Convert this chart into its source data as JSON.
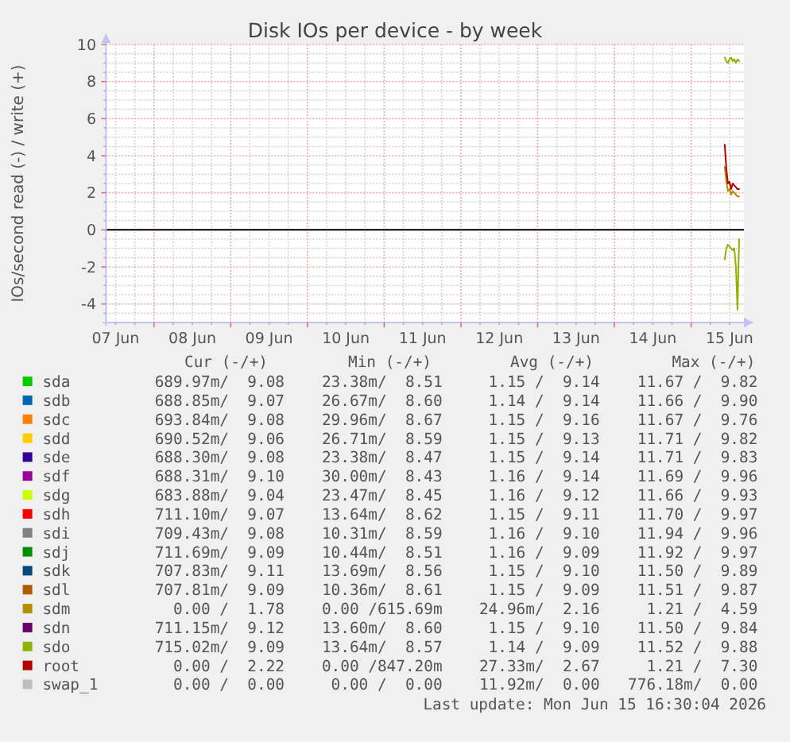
{
  "chart_data": {
    "type": "line",
    "title": "Disk IOs per device - by week",
    "ylabel": "IOs/second read (-) / write (+)",
    "xlim": [
      "2026-06-07T09:00",
      "2026-06-15T16:30"
    ],
    "xticks": [
      {
        "value": "2026-06-07T12:00",
        "label": "07 Jun"
      },
      {
        "value": "2026-06-07T18:00",
        "label": null
      },
      {
        "value": "2026-06-08T00:00",
        "label": null
      },
      {
        "value": "2026-06-08T06:00",
        "label": null
      },
      {
        "value": "2026-06-08T12:00",
        "label": "08 Jun"
      },
      {
        "value": "2026-06-08T18:00",
        "label": null
      },
      {
        "value": "2026-06-09T00:00",
        "label": null
      },
      {
        "value": "2026-06-09T06:00",
        "label": null
      },
      {
        "value": "2026-06-09T12:00",
        "label": "09 Jun"
      },
      {
        "value": "2026-06-09T18:00",
        "label": null
      },
      {
        "value": "2026-06-10T00:00",
        "label": null
      },
      {
        "value": "2026-06-10T06:00",
        "label": null
      },
      {
        "value": "2026-06-10T12:00",
        "label": "10 Jun"
      },
      {
        "value": "2026-06-10T18:00",
        "label": null
      },
      {
        "value": "2026-06-11T00:00",
        "label": null
      },
      {
        "value": "2026-06-11T06:00",
        "label": null
      },
      {
        "value": "2026-06-11T12:00",
        "label": "11 Jun"
      },
      {
        "value": "2026-06-11T18:00",
        "label": null
      },
      {
        "value": "2026-06-12T00:00",
        "label": null
      },
      {
        "value": "2026-06-12T06:00",
        "label": null
      },
      {
        "value": "2026-06-12T12:00",
        "label": "12 Jun"
      },
      {
        "value": "2026-06-12T18:00",
        "label": null
      },
      {
        "value": "2026-06-13T00:00",
        "label": null
      },
      {
        "value": "2026-06-13T06:00",
        "label": null
      },
      {
        "value": "2026-06-13T12:00",
        "label": "13 Jun"
      },
      {
        "value": "2026-06-13T18:00",
        "label": null
      },
      {
        "value": "2026-06-14T00:00",
        "label": null
      },
      {
        "value": "2026-06-14T06:00",
        "label": null
      },
      {
        "value": "2026-06-14T12:00",
        "label": "14 Jun"
      },
      {
        "value": "2026-06-14T18:00",
        "label": null
      },
      {
        "value": "2026-06-15T00:00",
        "label": null
      },
      {
        "value": "2026-06-15T06:00",
        "label": null
      },
      {
        "value": "2026-06-15T12:00",
        "label": "15 Jun"
      }
    ],
    "ylim": [
      -5,
      10
    ],
    "yticks": [
      -4,
      {
        "value": -4.5,
        "label": null
      },
      {
        "value": -3.5,
        "label": null
      },
      {
        "value": -3,
        "label": null
      },
      {
        "value": -2.5,
        "label": null
      },
      -2,
      {
        "value": -1.5,
        "label": null
      },
      {
        "value": -1,
        "label": null
      },
      {
        "value": -0.5,
        "label": null
      },
      0,
      {
        "value": 0.5,
        "label": null
      },
      {
        "value": 1,
        "label": null
      },
      {
        "value": 1.5,
        "label": null
      },
      2,
      {
        "value": 2.5,
        "label": null
      },
      {
        "value": 3,
        "label": null
      },
      {
        "value": 3.5,
        "label": null
      },
      4,
      {
        "value": 4.5,
        "label": null
      },
      {
        "value": 5,
        "label": null
      },
      {
        "value": 5.5,
        "label": null
      },
      6,
      {
        "value": 6.5,
        "label": null
      },
      {
        "value": 7,
        "label": null
      },
      {
        "value": 7.5,
        "label": null
      },
      8,
      {
        "value": 8.5,
        "label": null
      },
      {
        "value": 9,
        "label": null
      },
      {
        "value": 9.5,
        "label": null
      },
      10
    ],
    "grid": true,
    "legend": "bottom",
    "x": [
      "2026-06-15T10:30",
      "2026-06-15T11:00",
      "2026-06-15T11:30",
      "2026-06-15T12:00",
      "2026-06-15T12:30",
      "2026-06-15T13:00",
      "2026-06-15T13:30",
      "2026-06-15T14:00",
      "2026-06-15T14:30",
      "2026-06-15T15:00"
    ],
    "series": [
      {
        "name": "sda",
        "color": "#00cc00",
        "values": [
          null,
          null,
          null,
          null,
          null,
          null,
          null,
          null,
          null,
          null
        ]
      },
      {
        "name": "sdb",
        "color": "#0066b3",
        "values": [
          null,
          null,
          null,
          null,
          null,
          null,
          null,
          null,
          null,
          null
        ]
      },
      {
        "name": "sdc",
        "color": "#ff8000",
        "values": [
          null,
          null,
          null,
          null,
          null,
          null,
          null,
          null,
          null,
          null
        ]
      },
      {
        "name": "sdd",
        "color": "#ffcc00",
        "values": [
          null,
          null,
          null,
          null,
          null,
          null,
          null,
          null,
          null,
          null
        ]
      },
      {
        "name": "sde",
        "color": "#330099",
        "values": [
          null,
          null,
          null,
          null,
          null,
          null,
          null,
          null,
          null,
          null
        ]
      },
      {
        "name": "sdf",
        "color": "#990099",
        "values": [
          null,
          null,
          null,
          null,
          null,
          null,
          null,
          null,
          null,
          null
        ]
      },
      {
        "name": "sdg",
        "color": "#ccff00",
        "values": [
          null,
          null,
          null,
          null,
          null,
          null,
          null,
          null,
          null,
          null
        ]
      },
      {
        "name": "sdh",
        "color": "#ff0000",
        "values": [
          null,
          null,
          null,
          null,
          null,
          null,
          null,
          null,
          null,
          null
        ]
      },
      {
        "name": "sdi",
        "color": "#808080",
        "values": [
          null,
          null,
          null,
          null,
          null,
          null,
          null,
          null,
          null,
          null
        ]
      },
      {
        "name": "sdj",
        "color": "#008f00",
        "values": [
          null,
          null,
          null,
          null,
          null,
          null,
          null,
          null,
          null,
          null
        ]
      },
      {
        "name": "sdk",
        "color": "#00487d",
        "values": [
          null,
          null,
          null,
          null,
          null,
          null,
          null,
          null,
          null,
          null
        ]
      },
      {
        "name": "sdl",
        "color": "#b35a00",
        "values": [
          null,
          null,
          null,
          null,
          null,
          null,
          null,
          null,
          null,
          null
        ]
      },
      {
        "name": "sdm",
        "color": "#b38f00",
        "values": [
          3.4,
          2.6,
          2.1,
          2.2,
          1.9,
          2.1,
          2.0,
          1.9,
          1.8,
          1.8
        ]
      },
      {
        "name": "sdn",
        "color": "#6b006b",
        "values": [
          null,
          null,
          null,
          null,
          null,
          null,
          null,
          null,
          null,
          null
        ]
      },
      {
        "color": "#8fb300",
        "values": [
          -1.6,
          -1.0,
          -0.8,
          -0.9,
          -1.0,
          -1.1,
          -1.0,
          -2.0,
          -4.3,
          -0.5
        ]
      },
      {
        "name": "sdo",
        "color": "#8fb300",
        "values": [
          9.3,
          9.1,
          9.0,
          9.2,
          9.3,
          9.1,
          9.2,
          9.0,
          9.2,
          9.1
        ]
      },
      {
        "name": "root",
        "color": "#b30000",
        "values": [
          4.6,
          3.3,
          2.5,
          2.6,
          2.2,
          2.5,
          2.4,
          2.3,
          2.2,
          2.2
        ]
      },
      {
        "name": "swap_1",
        "color": "#bebebe",
        "values": [
          null,
          null,
          null,
          null,
          null,
          null,
          null,
          null,
          null,
          null
        ]
      }
    ],
    "ref_lines": [
      {
        "axis": "y",
        "value": 0,
        "color": "#000000"
      }
    ],
    "annotations": [
      "Cur (-/+)",
      "Min (-/+)",
      "Avg (-/+)",
      "Max (-/+)",
      "689.97m/  9.08",
      "23.38m/  8.51",
      "1.15 /  9.14",
      "11.67 /  9.82",
      "688.85m/  9.07",
      "26.67m/  8.60",
      "1.14 /  9.14",
      "11.66 /  9.90",
      "693.84m/  9.08",
      "29.96m/  8.67",
      "1.15 /  9.16",
      "11.67 /  9.76",
      "690.52m/  9.06",
      "26.71m/  8.59",
      "1.15 /  9.13",
      "11.71 /  9.82",
      "688.30m/  9.08",
      "23.38m/  8.47",
      "1.15 /  9.14",
      "11.71 /  9.83",
      "688.31m/  9.10",
      "30.00m/  8.43",
      "1.16 /  9.14",
      "11.69 /  9.96",
      "683.88m/  9.04",
      "23.47m/  8.45",
      "1.16 /  9.12",
      "11.66 /  9.93",
      "711.10m/  9.07",
      "13.64m/  8.62",
      "1.15 /  9.11",
      "11.70 /  9.97",
      "709.43m/  9.08",
      "10.31m/  8.59",
      "1.16 /  9.10",
      "11.94 /  9.96",
      "711.69m/  9.09",
      "10.44m/  8.51",
      "1.16 /  9.09",
      "11.92 /  9.97",
      "707.83m/  9.11",
      "13.69m/  8.56",
      "1.15 /  9.10",
      "11.50 /  9.89",
      "707.81m/  9.09",
      "10.36m/  8.61",
      "1.15 /  9.09",
      "11.51 /  9.87",
      "0.00 /  1.78",
      "0.00 /615.69m",
      "24.96m/  2.16",
      "1.21 /  4.59",
      "711.15m/  9.12",
      "13.60m/  8.60",
      "1.15 /  9.10",
      "11.50 /  9.84",
      "715.02m/  9.09",
      "13.64m/  8.57",
      "1.14 /  9.09",
      "11.52 /  9.88",
      "0.00 /  2.22",
      "0.00 /847.20m",
      "27.33m/  2.67",
      "1.21 /  7.30",
      "0.00 /  0.00",
      "0.00 /  0.00",
      "11.92m/  0.00",
      "776.18m/  0.00",
      "Last update: Mon Jun 15 16:30:04 2026"
    ]
  }
}
